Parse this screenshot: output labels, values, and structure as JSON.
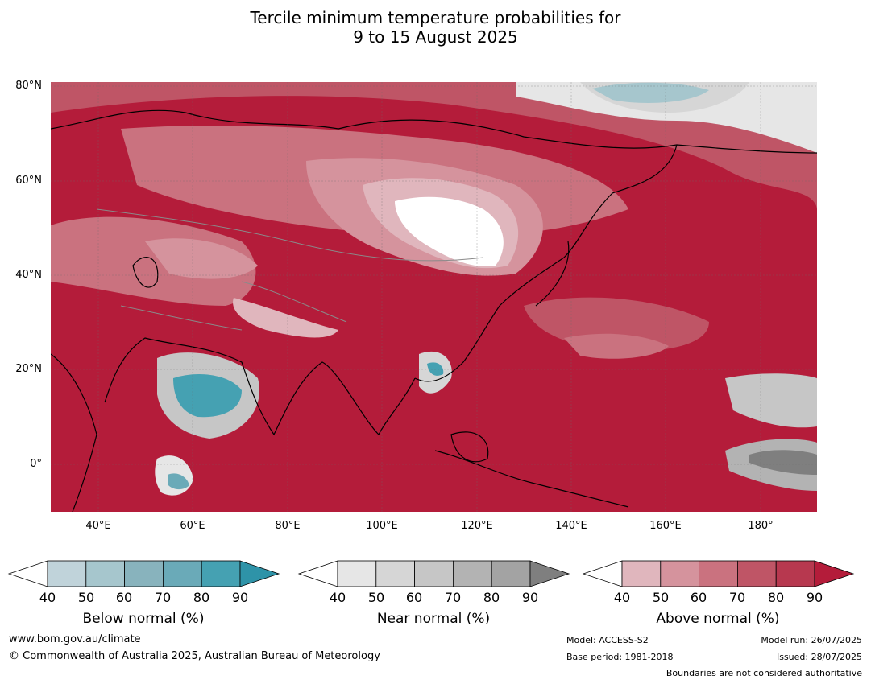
{
  "title_line1": "Tercile minimum temperature probabilities for",
  "title_line2": "9 to 15 August 2025",
  "map": {
    "lat_labels": [
      "80°N",
      "60°N",
      "40°N",
      "20°N",
      "0°"
    ],
    "lon_labels": [
      "40°E",
      "60°E",
      "80°E",
      "100°E",
      "120°E",
      "140°E",
      "160°E",
      "180°"
    ],
    "background": "#b41c3a"
  },
  "colorbars": [
    {
      "name": "below",
      "title": "Below normal (%)",
      "ticks": [
        "40",
        "50",
        "60",
        "70",
        "80",
        "90"
      ],
      "colors": [
        "#c0d3da",
        "#a6c6cd",
        "#88b3bd",
        "#6aaab8",
        "#45a1b2"
      ],
      "extend": "#2e93a8"
    },
    {
      "name": "near",
      "title": "Near normal (%)",
      "ticks": [
        "40",
        "50",
        "60",
        "70",
        "80",
        "90"
      ],
      "colors": [
        "#e6e6e6",
        "#d6d6d6",
        "#c6c6c6",
        "#b3b3b3",
        "#a3a3a3"
      ],
      "extend": "#7f7f7f"
    },
    {
      "name": "above",
      "title": "Above normal (%)",
      "ticks": [
        "40",
        "50",
        "60",
        "70",
        "80",
        "90"
      ],
      "colors": [
        "#e0b6bd",
        "#d5939d",
        "#ca727f",
        "#bf5566",
        "#b7384f"
      ],
      "extend": "#b41c3a"
    }
  ],
  "footer": {
    "website": "www.bom.gov.au/climate",
    "copyright": "© Commonwealth of Australia 2025, Australian Bureau of Meteorology",
    "model": "Model: ACCESS-S2",
    "base_period": "Base period: 1981-2018",
    "model_run": "Model run: 26/07/2025",
    "issued": "Issued: 28/07/2025",
    "disclaimer": "Boundaries are not considered authoritative"
  }
}
